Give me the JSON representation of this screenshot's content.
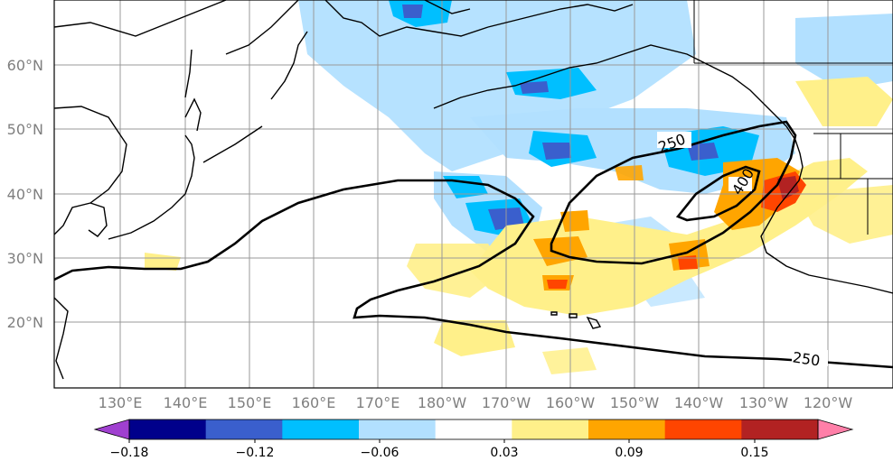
{
  "map": {
    "lat_ticks": [
      "60°N",
      "50°N",
      "40°N",
      "30°N",
      "20°N"
    ],
    "lon_ticks": [
      "130°E",
      "140°E",
      "150°E",
      "160°E",
      "170°E",
      "180°W",
      "170°W",
      "160°W",
      "150°W",
      "140°W",
      "130°W",
      "120°W"
    ],
    "contour_labels": [
      "250",
      "400",
      "250"
    ]
  },
  "colorbar": {
    "tick_labels": [
      "−0.18",
      "−0.12",
      "−0.06",
      "0.03",
      "0.09",
      "0.15"
    ],
    "colors": [
      "#a040d0",
      "#00008b",
      "#3a5fcd",
      "#00bfff",
      "#b2e0ff",
      "#ffffff",
      "#fff08a",
      "#ffa500",
      "#ff4500",
      "#b22222",
      "#ff7fa8"
    ]
  }
}
